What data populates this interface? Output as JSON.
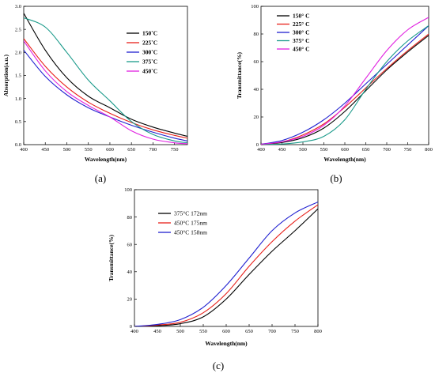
{
  "panel_labels": [
    "(a)",
    "(b)",
    "(c)"
  ],
  "chart_data": [
    {
      "id": "a",
      "type": "line",
      "xlabel": "Wavelength(nm)",
      "ylabel": "Absorption(a.u.)",
      "xlim": [
        400,
        780
      ],
      "ylim": [
        0,
        3.0
      ],
      "xticks": [
        400,
        450,
        500,
        550,
        600,
        650,
        700,
        750
      ],
      "yticks": [
        0.0,
        0.5,
        1.0,
        1.5,
        2.0,
        2.5,
        3.0
      ],
      "ytick_labels": [
        "0.0",
        "0.5",
        "1.0",
        "1.5",
        "2.0",
        "2.5",
        "3.0"
      ],
      "legend_position": "top-right",
      "x": [
        400,
        450,
        500,
        550,
        600,
        650,
        700,
        750,
        780
      ],
      "series": [
        {
          "name": "150˚C",
          "color": "#000000",
          "values": [
            2.85,
            2.05,
            1.45,
            1.05,
            0.8,
            0.55,
            0.38,
            0.25,
            0.18
          ]
        },
        {
          "name": "225˚C",
          "color": "#e8201a",
          "values": [
            2.3,
            1.7,
            1.25,
            0.92,
            0.68,
            0.48,
            0.32,
            0.2,
            0.14
          ]
        },
        {
          "name": "300˚C",
          "color": "#2020d0",
          "values": [
            2.05,
            1.48,
            1.08,
            0.8,
            0.6,
            0.42,
            0.27,
            0.14,
            0.08
          ]
        },
        {
          "name": "375˚C",
          "color": "#1a9a8a",
          "values": [
            2.75,
            2.55,
            2.0,
            1.4,
            0.95,
            0.5,
            0.22,
            0.08,
            0.04
          ]
        },
        {
          "name": "450˚C",
          "color": "#e020e0",
          "values": [
            2.25,
            1.6,
            1.15,
            0.85,
            0.6,
            0.3,
            0.12,
            0.04,
            0.02
          ]
        }
      ]
    },
    {
      "id": "b",
      "type": "line",
      "xlabel": "Wavelength(nm)",
      "ylabel": "Transmittance(%)",
      "xlim": [
        400,
        800
      ],
      "ylim": [
        0,
        100
      ],
      "xticks": [
        400,
        450,
        500,
        550,
        600,
        650,
        700,
        750,
        800
      ],
      "yticks": [
        0,
        20,
        40,
        60,
        80,
        100
      ],
      "legend_position": "top-left",
      "x": [
        400,
        450,
        500,
        550,
        600,
        650,
        700,
        750,
        800
      ],
      "series": [
        {
          "name": "150° C",
          "color": "#000000",
          "values": [
            0.3,
            1.5,
            5,
            12,
            24,
            39,
            54,
            67,
            79
          ]
        },
        {
          "name": "225° C",
          "color": "#e8201a",
          "values": [
            0.3,
            2,
            7,
            15,
            27,
            41,
            55,
            68,
            80
          ]
        },
        {
          "name": "300° C",
          "color": "#2020d0",
          "values": [
            0.3,
            3,
            9,
            18,
            30,
            44,
            58,
            72,
            86
          ]
        },
        {
          "name": "375° C",
          "color": "#1a9a8a",
          "values": [
            0.1,
            0.5,
            2,
            6,
            18,
            40,
            60,
            75,
            86
          ]
        },
        {
          "name": "450° C",
          "color": "#e020e0",
          "values": [
            0.3,
            2,
            6,
            14,
            28,
            48,
            68,
            83,
            92
          ]
        }
      ]
    },
    {
      "id": "c",
      "type": "line",
      "xlabel": "Wavelength(nm)",
      "ylabel": "Transmittance(%)",
      "xlim": [
        400,
        800
      ],
      "ylim": [
        0,
        100
      ],
      "xticks": [
        400,
        450,
        500,
        550,
        600,
        650,
        700,
        750,
        800
      ],
      "yticks": [
        0,
        20,
        40,
        60,
        80,
        100
      ],
      "legend_position": "top-left",
      "x": [
        400,
        450,
        500,
        550,
        600,
        650,
        700,
        750,
        800
      ],
      "series": [
        {
          "name": "375°C 172nm",
          "color": "#000000",
          "values": [
            0,
            0.5,
            2,
            7,
            20,
            38,
            55,
            70,
            86
          ]
        },
        {
          "name": "450°C 175nm",
          "color": "#e8201a",
          "values": [
            0,
            1,
            3,
            10,
            24,
            44,
            62,
            77,
            89
          ]
        },
        {
          "name": "450°C 158nm",
          "color": "#2020d0",
          "values": [
            0,
            1.5,
            5,
            14,
            30,
            50,
            70,
            83,
            91
          ]
        }
      ]
    }
  ]
}
